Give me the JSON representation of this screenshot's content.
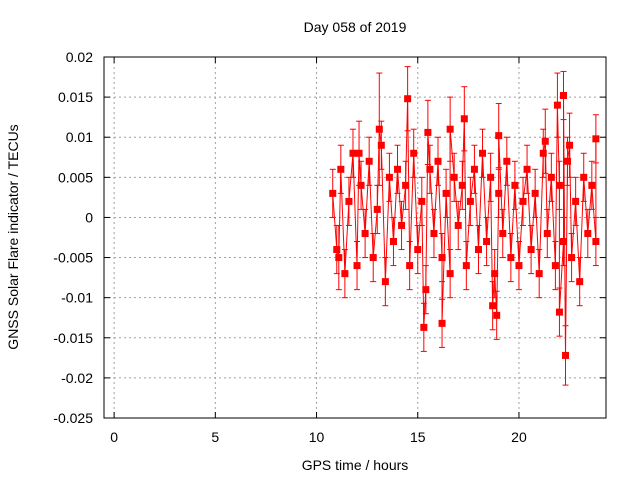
{
  "chart_data": {
    "type": "scatter",
    "title": "Day 058 of 2019",
    "xlabel": "GPS time / hours",
    "ylabel": "GNSS Solar Flare indicator / TECUs",
    "xlim": [
      -0.5,
      24.3
    ],
    "ylim": [
      -0.025,
      0.02
    ],
    "x_ticks": [
      0,
      5,
      10,
      15,
      20
    ],
    "y_ticks": [
      -0.025,
      -0.02,
      -0.015,
      -0.01,
      -0.005,
      0,
      0.005,
      0.01,
      0.015,
      0.02
    ],
    "x_tick_labels": [
      "0",
      "5",
      "10",
      "15",
      "20"
    ],
    "y_tick_labels": [
      "-0.025",
      "-0.02",
      "-0.015",
      "-0.01",
      "-0.005",
      "0",
      "0.005",
      "0.01",
      "0.015",
      "0.02"
    ],
    "grid": true,
    "marker": "filled-square",
    "color": "#ff0000",
    "series": [
      {
        "x": [
          10.8,
          11.0,
          11.2,
          11.4,
          11.6,
          11.8,
          12.0,
          12.2,
          12.4,
          12.6,
          12.8,
          13.0,
          13.2,
          13.4,
          13.6,
          13.8,
          14.0,
          14.2,
          14.4,
          14.6,
          14.8,
          15.0,
          15.2,
          15.4,
          15.6,
          15.8,
          16.0,
          16.2,
          16.4,
          16.6,
          16.8,
          17.0,
          17.2,
          17.4,
          17.6,
          17.8,
          18.0,
          18.2,
          18.4,
          18.6,
          18.8,
          19.0,
          19.2,
          19.4,
          19.6,
          19.8,
          20.0,
          20.2,
          20.4,
          20.6,
          20.8,
          21.0,
          21.2,
          21.4,
          21.6,
          21.8,
          22.0,
          22.2,
          22.4,
          22.6,
          22.8,
          23.0,
          23.2,
          23.4,
          23.6,
          23.8,
          11.1,
          12.1,
          13.1,
          14.5,
          15.3,
          15.5,
          16.2,
          17.3,
          18.9,
          19.0,
          21.9,
          22.2,
          22.3,
          22.0,
          22.5,
          23.8,
          16.6,
          18.7,
          21.3
        ],
        "y": [
          0.003,
          -0.004,
          0.006,
          -0.007,
          0.002,
          0.008,
          -0.006,
          0.004,
          -0.002,
          0.007,
          -0.005,
          0.001,
          0.009,
          -0.008,
          0.005,
          -0.003,
          0.006,
          -0.001,
          0.004,
          -0.006,
          0.008,
          -0.004,
          0.002,
          -0.009,
          0.006,
          -0.002,
          0.007,
          -0.005,
          0.003,
          -0.007,
          0.005,
          -0.001,
          0.004,
          -0.006,
          0.002,
          0.006,
          -0.004,
          0.008,
          -0.003,
          0.005,
          -0.007,
          0.003,
          -0.002,
          0.007,
          -0.005,
          0.004,
          -0.006,
          0.002,
          0.006,
          -0.004,
          0.003,
          -0.007,
          0.008,
          -0.002,
          0.005,
          -0.006,
          0.004,
          -0.003,
          0.007,
          -0.005,
          0.002,
          -0.008,
          0.005,
          -0.002,
          0.004,
          -0.003,
          -0.005,
          0.008,
          0.011,
          0.0148,
          -0.0137,
          0.0106,
          -0.0132,
          0.0123,
          -0.0122,
          0.0102,
          0.014,
          0.0152,
          -0.0172,
          -0.0118,
          0.009,
          0.0098,
          0.011,
          -0.011,
          0.0095
        ],
        "yerr": [
          0.003,
          0.003,
          0.003,
          0.003,
          0.003,
          0.003,
          0.003,
          0.003,
          0.003,
          0.003,
          0.003,
          0.003,
          0.003,
          0.003,
          0.003,
          0.003,
          0.003,
          0.003,
          0.003,
          0.003,
          0.003,
          0.003,
          0.003,
          0.003,
          0.003,
          0.003,
          0.003,
          0.003,
          0.003,
          0.003,
          0.003,
          0.003,
          0.003,
          0.003,
          0.003,
          0.003,
          0.003,
          0.003,
          0.003,
          0.003,
          0.003,
          0.003,
          0.003,
          0.003,
          0.003,
          0.003,
          0.003,
          0.003,
          0.003,
          0.003,
          0.003,
          0.003,
          0.003,
          0.003,
          0.003,
          0.003,
          0.003,
          0.003,
          0.003,
          0.003,
          0.003,
          0.003,
          0.003,
          0.003,
          0.003,
          0.003,
          0.004,
          0.004,
          0.007,
          0.004,
          0.003,
          0.004,
          0.003,
          0.004,
          0.003,
          0.004,
          0.004,
          0.003,
          0.0037,
          0.003,
          0.004,
          0.003,
          0.004,
          0.003,
          0.004
        ]
      }
    ]
  }
}
